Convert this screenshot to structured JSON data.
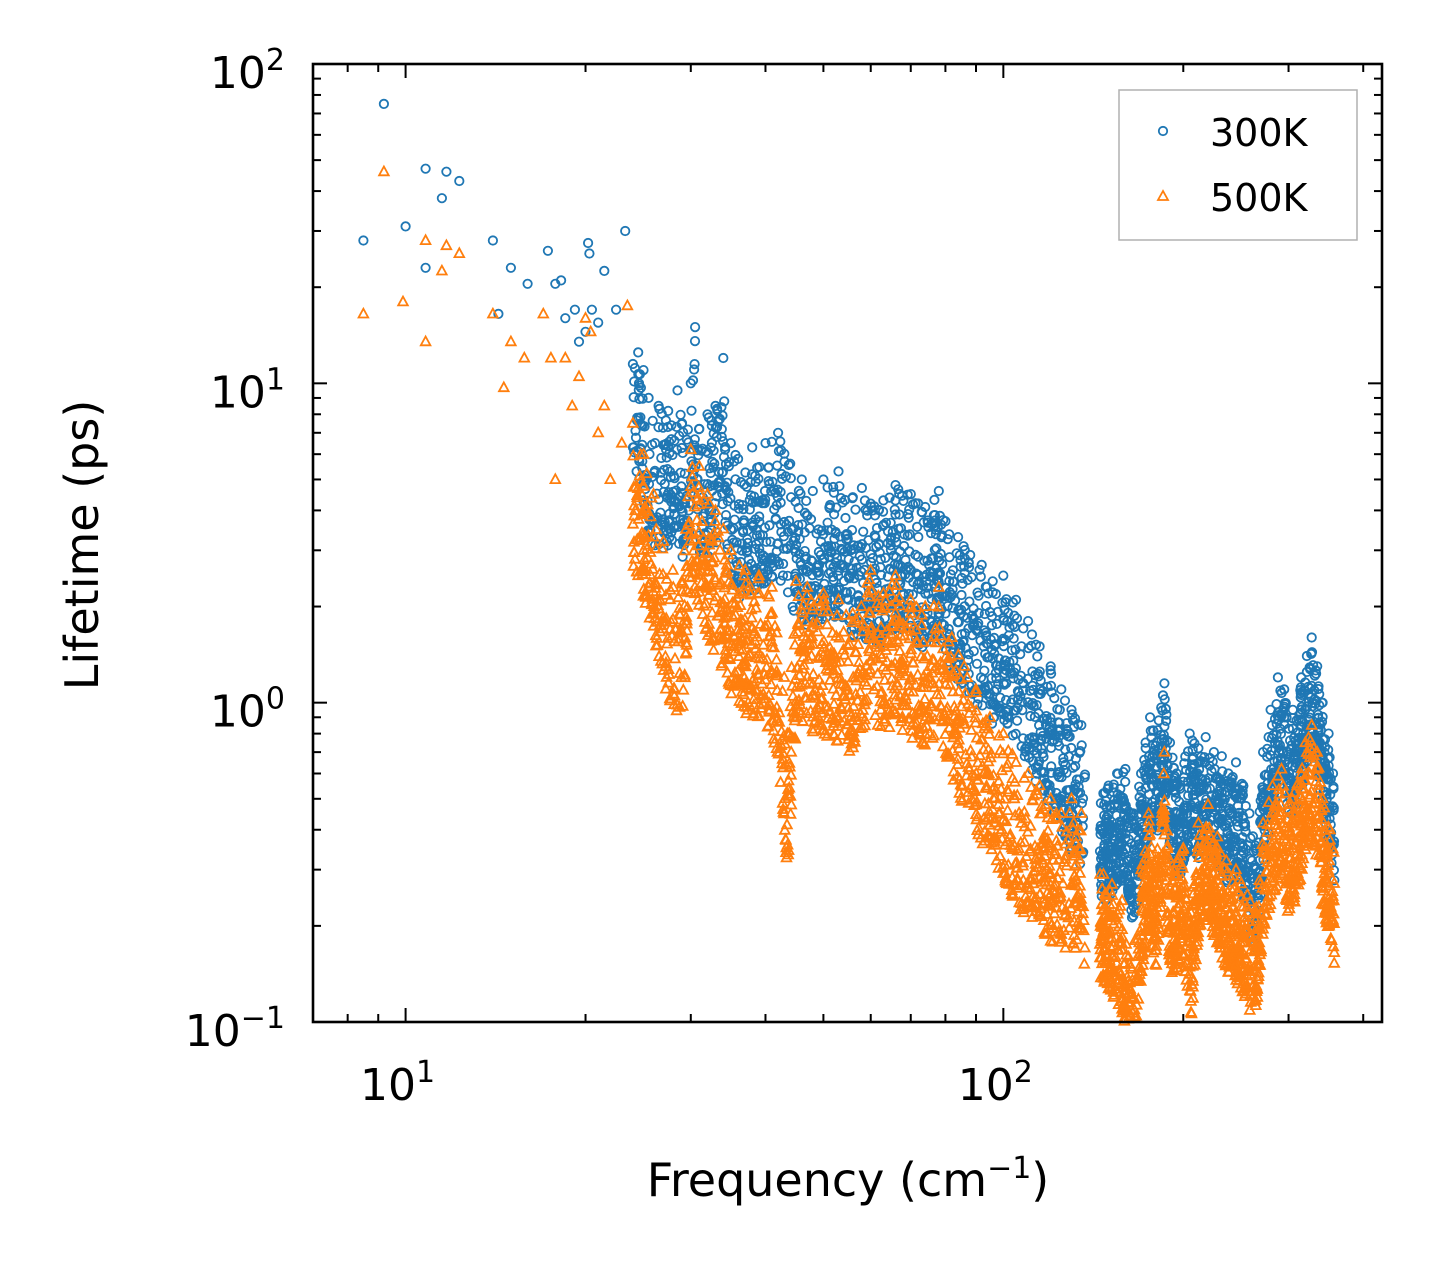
{
  "chart_data": {
    "type": "scatter",
    "xscale": "log",
    "yscale": "log",
    "xlim": [
      7,
      430
    ],
    "ylim": [
      0.1,
      100
    ],
    "x_ticks": [
      {
        "base": "10",
        "exp": "1"
      },
      {
        "base": "10",
        "exp": "2"
      }
    ],
    "y_ticks": [
      {
        "base": "10",
        "exp": "2"
      },
      {
        "base": "10",
        "exp": "1"
      },
      {
        "base": "10",
        "exp": "0"
      },
      {
        "base": "10",
        "exp": "−1"
      }
    ],
    "xlabel": {
      "main": "Frequency (cm",
      "sup": "−1",
      "tail": ")"
    },
    "ylabel": "Lifetime (ps)",
    "legend_position": "top-right",
    "series": [
      {
        "name": "300K",
        "marker": "circle",
        "color": "#1f77b4",
        "points": [
          [
            8.5,
            28
          ],
          [
            9.2,
            75
          ],
          [
            10,
            31
          ],
          [
            10.8,
            23
          ],
          [
            10.8,
            47
          ],
          [
            11.5,
            38
          ],
          [
            11.7,
            46
          ],
          [
            12.3,
            43
          ],
          [
            14,
            28
          ],
          [
            14.3,
            16.5
          ],
          [
            15,
            23
          ],
          [
            16,
            20.5
          ],
          [
            17.3,
            26
          ],
          [
            17.8,
            20.5
          ],
          [
            18.2,
            21
          ],
          [
            18.5,
            16
          ],
          [
            19.2,
            17
          ],
          [
            19.5,
            13.5
          ],
          [
            20,
            14.5
          ],
          [
            20.2,
            27.5
          ],
          [
            20.3,
            25.5
          ],
          [
            20.5,
            17
          ],
          [
            21,
            15.5
          ],
          [
            21.5,
            22.5
          ],
          [
            22.5,
            17
          ],
          [
            23.3,
            30
          ],
          [
            24,
            11.5
          ],
          [
            24.5,
            12.5
          ],
          [
            25,
            11
          ],
          [
            25.5,
            9
          ],
          [
            26.5,
            8.5
          ],
          [
            27.5,
            8.2
          ],
          [
            28.5,
            9.5
          ],
          [
            29,
            7.5
          ],
          [
            30,
            10
          ],
          [
            30.5,
            15
          ],
          [
            31,
            7.2
          ],
          [
            32,
            8
          ],
          [
            33,
            8.5
          ],
          [
            34,
            12
          ],
          [
            35,
            6.5
          ],
          [
            36,
            5.8
          ],
          [
            38,
            6.3
          ],
          [
            40,
            6.5
          ],
          [
            42,
            7
          ],
          [
            44,
            5.6
          ],
          [
            46,
            5
          ],
          [
            48,
            4.6
          ],
          [
            50,
            5
          ],
          [
            53,
            5.3
          ],
          [
            56,
            4.4
          ],
          [
            58,
            4.7
          ],
          [
            60,
            4.2
          ],
          [
            63,
            4.3
          ],
          [
            66,
            4.8
          ],
          [
            70,
            4.5
          ],
          [
            74,
            4.1
          ],
          [
            78,
            4.6
          ],
          [
            80,
            3.7
          ],
          [
            84,
            3.3
          ],
          [
            88,
            2.9
          ],
          [
            92,
            2.7
          ],
          [
            96,
            2.4
          ],
          [
            100,
            2.5
          ],
          [
            105,
            2.1
          ],
          [
            110,
            1.8
          ],
          [
            115,
            1.5
          ],
          [
            120,
            1.3
          ],
          [
            125,
            1.1
          ],
          [
            130,
            0.95
          ],
          [
            135,
            0.85
          ],
          [
            147,
            0.52
          ],
          [
            150,
            0.55
          ],
          [
            155,
            0.6
          ],
          [
            160,
            0.62
          ],
          [
            165,
            0.45
          ],
          [
            170,
            0.6
          ],
          [
            173,
            0.75
          ],
          [
            176,
            0.9
          ],
          [
            182,
            0.88
          ],
          [
            186,
            1.15
          ],
          [
            190,
            0.75
          ],
          [
            195,
            0.6
          ],
          [
            205,
            0.8
          ],
          [
            212,
            0.72
          ],
          [
            218,
            0.78
          ],
          [
            225,
            0.7
          ],
          [
            232,
            0.68
          ],
          [
            238,
            0.6
          ],
          [
            245,
            0.65
          ],
          [
            252,
            0.55
          ],
          [
            258,
            0.45
          ],
          [
            265,
            0.35
          ],
          [
            272,
            0.7
          ],
          [
            280,
            0.95
          ],
          [
            288,
            1.2
          ],
          [
            295,
            1.1
          ],
          [
            305,
            0.95
          ],
          [
            315,
            1.2
          ],
          [
            322,
            1.4
          ],
          [
            328,
            1.6
          ],
          [
            335,
            1.3
          ],
          [
            342,
            1.0
          ],
          [
            350,
            0.8
          ],
          [
            356,
            0.6
          ]
        ]
      },
      {
        "name": "500K",
        "marker": "triangle",
        "color": "#ff7f0e",
        "points": [
          [
            8.5,
            16.5
          ],
          [
            9.2,
            46
          ],
          [
            9.9,
            18
          ],
          [
            10.8,
            28
          ],
          [
            10.8,
            13.5
          ],
          [
            11.5,
            22.5
          ],
          [
            11.7,
            27
          ],
          [
            12.3,
            25.5
          ],
          [
            14,
            16.5
          ],
          [
            14.6,
            9.7
          ],
          [
            15,
            13.5
          ],
          [
            15.8,
            12
          ],
          [
            17,
            16.5
          ],
          [
            17.5,
            12
          ],
          [
            17.8,
            5
          ],
          [
            18.5,
            12
          ],
          [
            19,
            8.5
          ],
          [
            19.5,
            10.5
          ],
          [
            20,
            16
          ],
          [
            20.4,
            14.5
          ],
          [
            21,
            7
          ],
          [
            21.5,
            8.5
          ],
          [
            22,
            5
          ],
          [
            23,
            6.5
          ],
          [
            23.5,
            17.5
          ],
          [
            24,
            7.5
          ],
          [
            25,
            6
          ],
          [
            26,
            4.5
          ],
          [
            27,
            3.2
          ],
          [
            28,
            2.6
          ],
          [
            29,
            2.4
          ],
          [
            30,
            6.2
          ],
          [
            31,
            5.5
          ],
          [
            32,
            4.5
          ],
          [
            33,
            4
          ],
          [
            34,
            3.5
          ],
          [
            35,
            3
          ],
          [
            37,
            2.6
          ],
          [
            39,
            2.5
          ],
          [
            41,
            2.3
          ],
          [
            43,
            1.2
          ],
          [
            43.5,
            0.8
          ],
          [
            45,
            2.4
          ],
          [
            47,
            2.3
          ],
          [
            50,
            2.2
          ],
          [
            53,
            2.1
          ],
          [
            56,
            1.9
          ],
          [
            60,
            2.6
          ],
          [
            63,
            2.2
          ],
          [
            66,
            2.5
          ],
          [
            70,
            2.1
          ],
          [
            74,
            2.0
          ],
          [
            78,
            2.3
          ],
          [
            82,
            1.6
          ],
          [
            86,
            1.3
          ],
          [
            90,
            1.1
          ],
          [
            95,
            0.9
          ],
          [
            100,
            0.8
          ],
          [
            105,
            0.65
          ],
          [
            110,
            0.6
          ],
          [
            115,
            0.55
          ],
          [
            120,
            0.5
          ],
          [
            125,
            0.45
          ],
          [
            130,
            0.5
          ],
          [
            135,
            0.45
          ],
          [
            147,
            0.29
          ],
          [
            152,
            0.27
          ],
          [
            158,
            0.24
          ],
          [
            162,
            0.16
          ],
          [
            166,
            0.18
          ],
          [
            170,
            0.3
          ],
          [
            175,
            0.45
          ],
          [
            180,
            0.32
          ],
          [
            186,
            0.7
          ],
          [
            190,
            0.3
          ],
          [
            200,
            0.35
          ],
          [
            206,
            0.22
          ],
          [
            212,
            0.42
          ],
          [
            220,
            0.48
          ],
          [
            228,
            0.38
          ],
          [
            236,
            0.32
          ],
          [
            245,
            0.3
          ],
          [
            256,
            0.25
          ],
          [
            264,
            0.22
          ],
          [
            272,
            0.42
          ],
          [
            282,
            0.55
          ],
          [
            292,
            0.62
          ],
          [
            300,
            0.48
          ],
          [
            310,
            0.55
          ],
          [
            320,
            0.75
          ],
          [
            328,
            0.85
          ],
          [
            335,
            0.7
          ],
          [
            342,
            0.5
          ],
          [
            352,
            0.4
          ],
          [
            357,
            0.34
          ]
        ]
      }
    ]
  }
}
